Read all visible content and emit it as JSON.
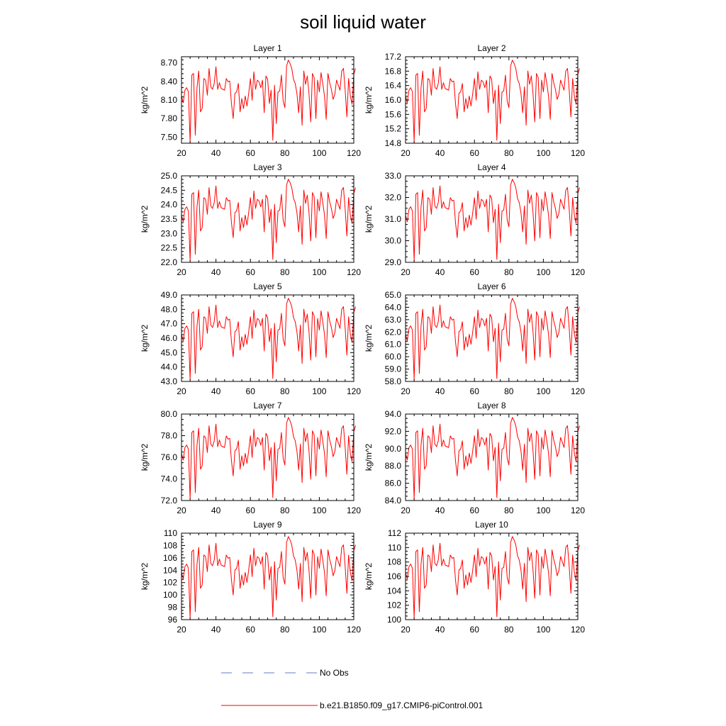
{
  "title": "soil liquid water",
  "legend": {
    "items": [
      {
        "label": "No Obs",
        "color": "#6a7bc8",
        "style": "dashed"
      },
      {
        "label": "b.e21.B1850.f09_g17.CMIP6-piControl.001",
        "color": "#ff0000",
        "style": "solid"
      }
    ]
  },
  "chart_data": [
    {
      "type": "line",
      "title": "Layer 1",
      "ylabel": "kg/m^2",
      "xlim": [
        20,
        120
      ],
      "ylim": [
        7.4,
        8.8
      ],
      "yticks": [
        7.5,
        7.8,
        8.1,
        8.4,
        8.7
      ],
      "ytick_labels": [
        "7.50",
        "7.80",
        "8.10",
        "8.40",
        "8.70"
      ],
      "xticks": [
        20,
        40,
        60,
        80,
        100,
        120
      ],
      "xtick_labels": [
        "20",
        "40",
        "60",
        "80",
        "100",
        "120"
      ],
      "series": [
        {
          "name": "b.e21.B1850.f09_g17.CMIP6-piControl.001",
          "color": "#ff0000"
        }
      ]
    },
    {
      "type": "line",
      "title": "Layer 2",
      "ylabel": "kg/m^2",
      "xlim": [
        20,
        120
      ],
      "ylim": [
        14.8,
        17.2
      ],
      "yticks": [
        14.8,
        15.2,
        15.6,
        16.0,
        16.4,
        16.8,
        17.2
      ],
      "ytick_labels": [
        "14.8",
        "15.2",
        "15.6",
        "16.0",
        "16.4",
        "16.8",
        "17.2"
      ],
      "xticks": [
        20,
        40,
        60,
        80,
        100,
        120
      ],
      "xtick_labels": [
        "20",
        "40",
        "60",
        "80",
        "100",
        "120"
      ],
      "series": [
        {
          "name": "b.e21.B1850.f09_g17.CMIP6-piControl.001",
          "color": "#ff0000"
        }
      ]
    },
    {
      "type": "line",
      "title": "Layer 3",
      "ylabel": "kg/m^2",
      "xlim": [
        20,
        120
      ],
      "ylim": [
        22.0,
        25.0
      ],
      "yticks": [
        22.0,
        22.5,
        23.0,
        23.5,
        24.0,
        24.5,
        25.0
      ],
      "ytick_labels": [
        "22.0",
        "22.5",
        "23.0",
        "23.5",
        "24.0",
        "24.5",
        "25.0"
      ],
      "xticks": [
        20,
        40,
        60,
        80,
        100,
        120
      ],
      "xtick_labels": [
        "20",
        "40",
        "60",
        "80",
        "100",
        "120"
      ],
      "series": [
        {
          "name": "b.e21.B1850.f09_g17.CMIP6-piControl.001",
          "color": "#ff0000"
        }
      ]
    },
    {
      "type": "line",
      "title": "Layer 4",
      "ylabel": "kg/m^2",
      "xlim": [
        20,
        120
      ],
      "ylim": [
        29.0,
        33.0
      ],
      "yticks": [
        29.0,
        30.0,
        31.0,
        32.0,
        33.0
      ],
      "ytick_labels": [
        "29.0",
        "30.0",
        "31.0",
        "32.0",
        "33.0"
      ],
      "xticks": [
        20,
        40,
        60,
        80,
        100,
        120
      ],
      "xtick_labels": [
        "20",
        "40",
        "60",
        "80",
        "100",
        "120"
      ],
      "series": [
        {
          "name": "b.e21.B1850.f09_g17.CMIP6-piControl.001",
          "color": "#ff0000"
        }
      ]
    },
    {
      "type": "line",
      "title": "Layer 5",
      "ylabel": "kg/m^2",
      "xlim": [
        20,
        120
      ],
      "ylim": [
        43.0,
        49.0
      ],
      "yticks": [
        43.0,
        44.0,
        45.0,
        46.0,
        47.0,
        48.0,
        49.0
      ],
      "ytick_labels": [
        "43.0",
        "44.0",
        "45.0",
        "46.0",
        "47.0",
        "48.0",
        "49.0"
      ],
      "xticks": [
        20,
        40,
        60,
        80,
        100,
        120
      ],
      "xtick_labels": [
        "20",
        "40",
        "60",
        "80",
        "100",
        "120"
      ],
      "series": [
        {
          "name": "b.e21.B1850.f09_g17.CMIP6-piControl.001",
          "color": "#ff0000"
        }
      ]
    },
    {
      "type": "line",
      "title": "Layer 6",
      "ylabel": "kg/m^2",
      "xlim": [
        20,
        120
      ],
      "ylim": [
        58.0,
        65.0
      ],
      "yticks": [
        58.0,
        59.0,
        60.0,
        61.0,
        62.0,
        63.0,
        64.0,
        65.0
      ],
      "ytick_labels": [
        "58.0",
        "59.0",
        "60.0",
        "61.0",
        "62.0",
        "63.0",
        "64.0",
        "65.0"
      ],
      "xticks": [
        20,
        40,
        60,
        80,
        100,
        120
      ],
      "xtick_labels": [
        "20",
        "40",
        "60",
        "80",
        "100",
        "120"
      ],
      "series": [
        {
          "name": "b.e21.B1850.f09_g17.CMIP6-piControl.001",
          "color": "#ff0000"
        }
      ]
    },
    {
      "type": "line",
      "title": "Layer 7",
      "ylabel": "kg/m^2",
      "xlim": [
        20,
        120
      ],
      "ylim": [
        72.0,
        80.0
      ],
      "yticks": [
        72.0,
        74.0,
        76.0,
        78.0,
        80.0
      ],
      "ytick_labels": [
        "72.0",
        "74.0",
        "76.0",
        "78.0",
        "80.0"
      ],
      "xticks": [
        20,
        40,
        60,
        80,
        100,
        120
      ],
      "xtick_labels": [
        "20",
        "40",
        "60",
        "80",
        "100",
        "120"
      ],
      "series": [
        {
          "name": "b.e21.B1850.f09_g17.CMIP6-piControl.001",
          "color": "#ff0000"
        }
      ]
    },
    {
      "type": "line",
      "title": "Layer 8",
      "ylabel": "kg/m^2",
      "xlim": [
        20,
        120
      ],
      "ylim": [
        84.0,
        94.0
      ],
      "yticks": [
        84.0,
        86.0,
        88.0,
        90.0,
        92.0,
        94.0
      ],
      "ytick_labels": [
        "84.0",
        "86.0",
        "88.0",
        "90.0",
        "92.0",
        "94.0"
      ],
      "xticks": [
        20,
        40,
        60,
        80,
        100,
        120
      ],
      "xtick_labels": [
        "20",
        "40",
        "60",
        "80",
        "100",
        "120"
      ],
      "series": [
        {
          "name": "b.e21.B1850.f09_g17.CMIP6-piControl.001",
          "color": "#ff0000"
        }
      ]
    },
    {
      "type": "line",
      "title": "Layer 9",
      "ylabel": "kg/m^2",
      "xlim": [
        20,
        120
      ],
      "ylim": [
        96,
        110
      ],
      "yticks": [
        96,
        98,
        100,
        102,
        104,
        106,
        108,
        110
      ],
      "ytick_labels": [
        "96",
        "98",
        "100",
        "102",
        "104",
        "106",
        "108",
        "110"
      ],
      "xticks": [
        20,
        40,
        60,
        80,
        100,
        120
      ],
      "xtick_labels": [
        "20",
        "40",
        "60",
        "80",
        "100",
        "120"
      ],
      "series": [
        {
          "name": "b.e21.B1850.f09_g17.CMIP6-piControl.001",
          "color": "#ff0000"
        }
      ]
    },
    {
      "type": "line",
      "title": "Layer 10",
      "ylabel": "kg/m^2",
      "xlim": [
        20,
        120
      ],
      "ylim": [
        100,
        112
      ],
      "yticks": [
        100,
        102,
        104,
        106,
        108,
        110,
        112
      ],
      "ytick_labels": [
        "100",
        "102",
        "104",
        "106",
        "108",
        "110",
        "112"
      ],
      "xticks": [
        20,
        40,
        60,
        80,
        100,
        120
      ],
      "xtick_labels": [
        "20",
        "40",
        "60",
        "80",
        "100",
        "120"
      ],
      "series": [
        {
          "name": "b.e21.B1850.f09_g17.CMIP6-piControl.001",
          "color": "#ff0000"
        }
      ]
    }
  ],
  "shape": {
    "x_start": 20,
    "values": [
      0.55,
      0.47,
      0.62,
      0.65,
      0.6,
      0.0,
      0.8,
      0.82,
      0.08,
      0.65,
      0.85,
      0.36,
      0.4,
      0.76,
      0.74,
      0.56,
      0.88,
      0.66,
      0.63,
      0.7,
      0.9,
      0.63,
      0.71,
      0.64,
      0.63,
      0.62,
      0.76,
      0.72,
      0.73,
      0.46,
      0.28,
      0.58,
      0.6,
      0.7,
      0.36,
      0.52,
      0.4,
      0.55,
      0.43,
      0.58,
      0.76,
      0.5,
      0.84,
      0.63,
      0.74,
      0.72,
      0.65,
      0.74,
      0.35,
      0.79,
      0.75,
      0.46,
      0.62,
      0.02,
      0.68,
      0.22,
      0.6,
      0.61,
      0.8,
      0.49,
      0.41,
      0.91,
      0.98,
      0.94,
      0.88,
      0.75,
      0.7,
      0.58,
      0.35,
      0.66,
      0.2,
      0.85,
      0.69,
      0.79,
      0.58,
      0.24,
      0.82,
      0.77,
      0.28,
      0.74,
      0.6,
      0.83,
      0.7,
      0.55,
      0.27,
      0.82,
      0.71,
      0.63,
      0.51,
      0.57,
      0.74,
      0.68,
      0.62,
      0.85,
      0.88,
      0.62,
      0.3,
      0.76,
      0.55,
      0.45,
      0.81,
      0.88
    ]
  }
}
